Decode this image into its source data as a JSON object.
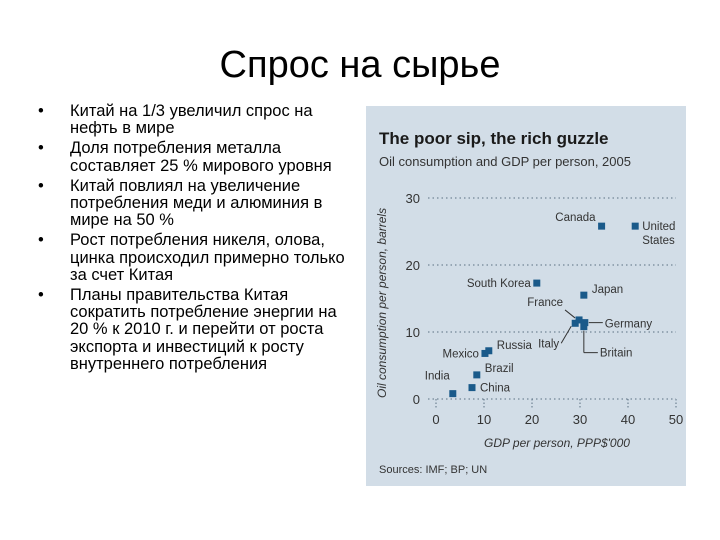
{
  "slide": {
    "title": "Спрос на сырье",
    "bullets": [
      "Китай на 1/3 увеличил спрос на нефть в мире",
      "Доля потребления металла составляет 25 % мирового уровня",
      "Китай повлиял на увеличение потребления меди и алюминия в мире на 50 %",
      "Рост потребления никеля, олова, цинка происходил примерно только за счет Китая",
      "Планы правительства Китая сократить потребление энергии на 20 % к 2010 г. и перейти от роста экспорта и инвестиций к росту внутреннего потребления"
    ],
    "bullet_glyph": "•"
  },
  "chart_data": {
    "type": "scatter",
    "title": "The poor sip, the rich guzzle",
    "subtitle": "Oil consumption and GDP per person, 2005",
    "xlabel": "GDP per person, PPP$'000",
    "ylabel": "Oil consumption per person, barrels",
    "source": "Sources: IMF; BP; UN",
    "xlim": [
      0,
      50
    ],
    "ylim": [
      0,
      30
    ],
    "xticks": [
      0,
      10,
      20,
      30,
      40,
      50
    ],
    "yticks": [
      0,
      10,
      20,
      30
    ],
    "grid": "dotted",
    "marker_color": "#1a5a8a",
    "panel_color": "#d2dde7",
    "points": [
      {
        "label": "India",
        "x": 3.5,
        "y": 0.8
      },
      {
        "label": "China",
        "x": 7.5,
        "y": 1.7
      },
      {
        "label": "Brazil",
        "x": 8.5,
        "y": 3.6
      },
      {
        "label": "Mexico",
        "x": 10.2,
        "y": 6.8
      },
      {
        "label": "Russia",
        "x": 11.0,
        "y": 7.2
      },
      {
        "label": "South Korea",
        "x": 21.0,
        "y": 17.3
      },
      {
        "label": "France",
        "x": 29.8,
        "y": 11.8
      },
      {
        "label": "Italy",
        "x": 29.0,
        "y": 11.3
      },
      {
        "label": "Britain",
        "x": 30.8,
        "y": 10.8
      },
      {
        "label": "Germany",
        "x": 31.0,
        "y": 11.4
      },
      {
        "label": "Japan",
        "x": 30.8,
        "y": 15.5
      },
      {
        "label": "Canada",
        "x": 34.5,
        "y": 25.8
      },
      {
        "label": "United States",
        "x": 41.5,
        "y": 25.8
      }
    ]
  }
}
